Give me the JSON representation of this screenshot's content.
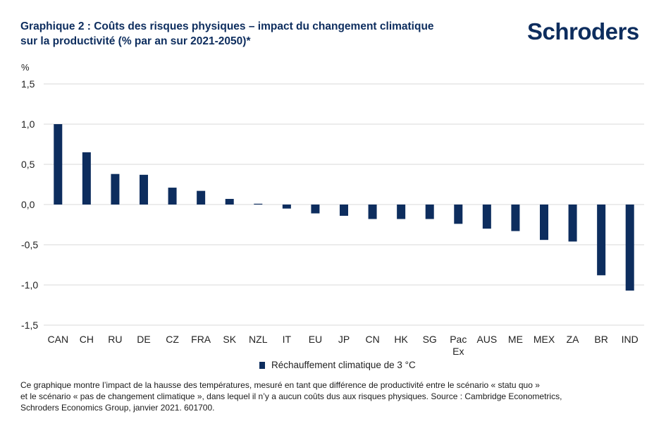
{
  "header": {
    "title_line1": "Graphique 2 : Coûts des risques physiques – impact du changement climatique",
    "title_line2": "sur la productivité (% par an sur 2021-2050)*",
    "logo_text": "Schroders"
  },
  "colors": {
    "bar": "#0d2d5e",
    "grid": "#d9d9d9",
    "title": "#0d2d5e"
  },
  "chart_data": {
    "type": "bar",
    "title": "Coûts des risques physiques – impact du changement climatique sur la productivité (% par an sur 2021-2050)*",
    "ylabel": "%",
    "xlabel": "",
    "ylim": [
      -1.5,
      1.5
    ],
    "yticks": [
      1.5,
      1.0,
      0.5,
      0.0,
      -0.5,
      -1.0,
      -1.5
    ],
    "ytick_labels": [
      "1,5",
      "1,0",
      "0,5",
      "0,0",
      "-0,5",
      "-1,0",
      "-1,5"
    ],
    "categories": [
      "CAN",
      "CH",
      "RU",
      "DE",
      "CZ",
      "FRA",
      "SK",
      "NZL",
      "IT",
      "EU",
      "JP",
      "CN",
      "HK",
      "SG",
      "Pac Ex",
      "AUS",
      "ME",
      "MEX",
      "ZA",
      "BR",
      "IND"
    ],
    "series": [
      {
        "name": "Réchauffement climatique de 3 °C",
        "values": [
          1.0,
          0.65,
          0.38,
          0.37,
          0.21,
          0.17,
          0.07,
          0.01,
          -0.05,
          -0.11,
          -0.14,
          -0.18,
          -0.18,
          -0.18,
          -0.24,
          -0.3,
          -0.33,
          -0.44,
          -0.46,
          -0.88,
          -1.07
        ]
      }
    ],
    "grid": true,
    "legend": "bottom-center"
  },
  "legend": {
    "label": "Réchauffement climatique de 3 °C"
  },
  "footnote": {
    "line1": "Ce graphique montre l’impact de la hausse des températures, mesuré en tant que différence de productivité entre le scénario « statu quo »",
    "line2": "et le scénario « pas de changement climatique », dans lequel il n’y a aucun coûts dus aux risques physiques. Source : Cambridge Econometrics,",
    "line3": "Schroders Economics Group, janvier 2021. 601700."
  }
}
